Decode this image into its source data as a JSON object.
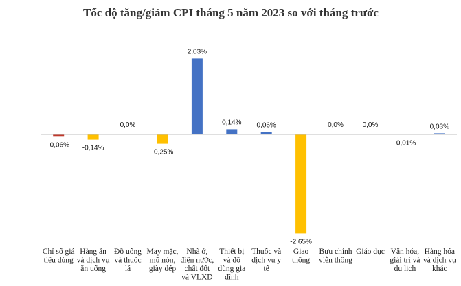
{
  "chart_data": {
    "type": "bar",
    "title": "Tốc độ tăng/giảm CPI tháng 5 năm 2023 so với tháng trước",
    "xlabel": "",
    "ylabel": "",
    "grid": false,
    "legend": "none",
    "categories": [
      [
        "Chỉ số giá",
        "tiêu dùng"
      ],
      [
        "Hàng ăn",
        "và dịch vụ",
        "ăn uống"
      ],
      [
        "Đồ uống",
        "và thuốc",
        "lá"
      ],
      [
        "May mặc,",
        "mũ nón,",
        "giày dép"
      ],
      [
        "Nhà ở,",
        "điện nước,",
        "chất đốt",
        "và VLXD"
      ],
      [
        "Thiết bị",
        "và đồ",
        "dùng gia",
        "đình"
      ],
      [
        "Thuốc và",
        "dịch vụ y",
        "tế"
      ],
      [
        "Giao",
        "thông"
      ],
      [
        "Bưu chính",
        "viễn thông"
      ],
      [
        "Giáo dục"
      ],
      [
        "Văn hóa,",
        "giải trí và",
        "du lịch"
      ],
      [
        "Hàng hóa",
        "và dịch vụ",
        "khác"
      ]
    ],
    "values": [
      -0.06,
      -0.14,
      0.0,
      -0.25,
      2.03,
      0.14,
      0.06,
      -2.65,
      0.0,
      0.0,
      -0.01,
      0.03
    ],
    "data_labels": [
      "-0,06%",
      "-0,14%",
      "0,0%",
      "-0,25%",
      "2,03%",
      "0,14%",
      "0,06%",
      "-2,65%",
      "0,0%",
      "0,0%",
      "-0,01%",
      "0,03%"
    ],
    "colors": [
      "#C0392B",
      "#FFC000",
      "#4472C4",
      "#FFC000",
      "#4472C4",
      "#4472C4",
      "#4472C4",
      "#FFC000",
      "#4472C4",
      "#4472C4",
      "#FFC000",
      "#4472C4"
    ],
    "axis_color": "#BFBFBF"
  }
}
